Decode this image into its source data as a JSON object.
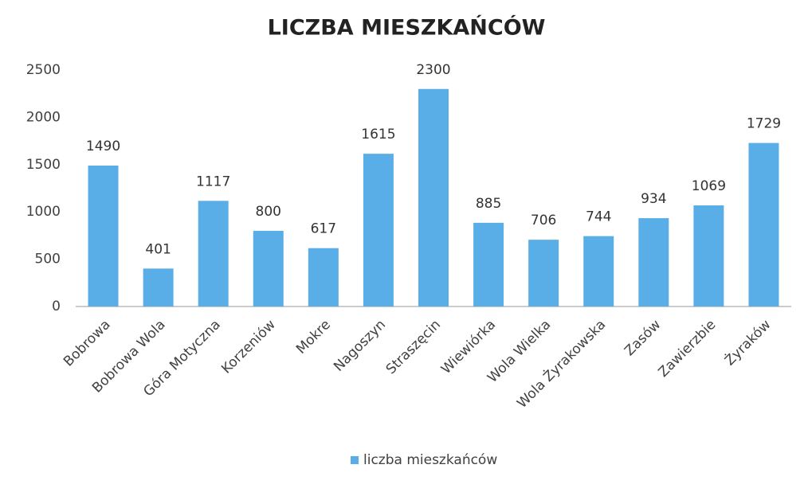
{
  "chart_data": {
    "type": "bar",
    "title": "LICZBA MIESZKAŃCÓW",
    "categories": [
      "Bobrowa",
      "Bobrowa Wola",
      "Góra Motyczna",
      "Korzeniów",
      "Mokre",
      "Nagoszyn",
      "Straszęcin",
      "Wiewiórka",
      "Wola Wielka",
      "Wola Żyrakowska",
      "Zasów",
      "Zawierzbie",
      "Żyraków"
    ],
    "series": [
      {
        "name": "liczba mieszkańców",
        "color": "#5aaee8",
        "values": [
          1490,
          401,
          1117,
          800,
          617,
          1615,
          2300,
          885,
          706,
          744,
          934,
          1069,
          1729
        ]
      }
    ],
    "ylim": [
      0,
      2500
    ],
    "yticks": [
      0,
      500,
      1000,
      1500,
      2000,
      2500
    ],
    "grid": false,
    "legend": "bottom"
  }
}
